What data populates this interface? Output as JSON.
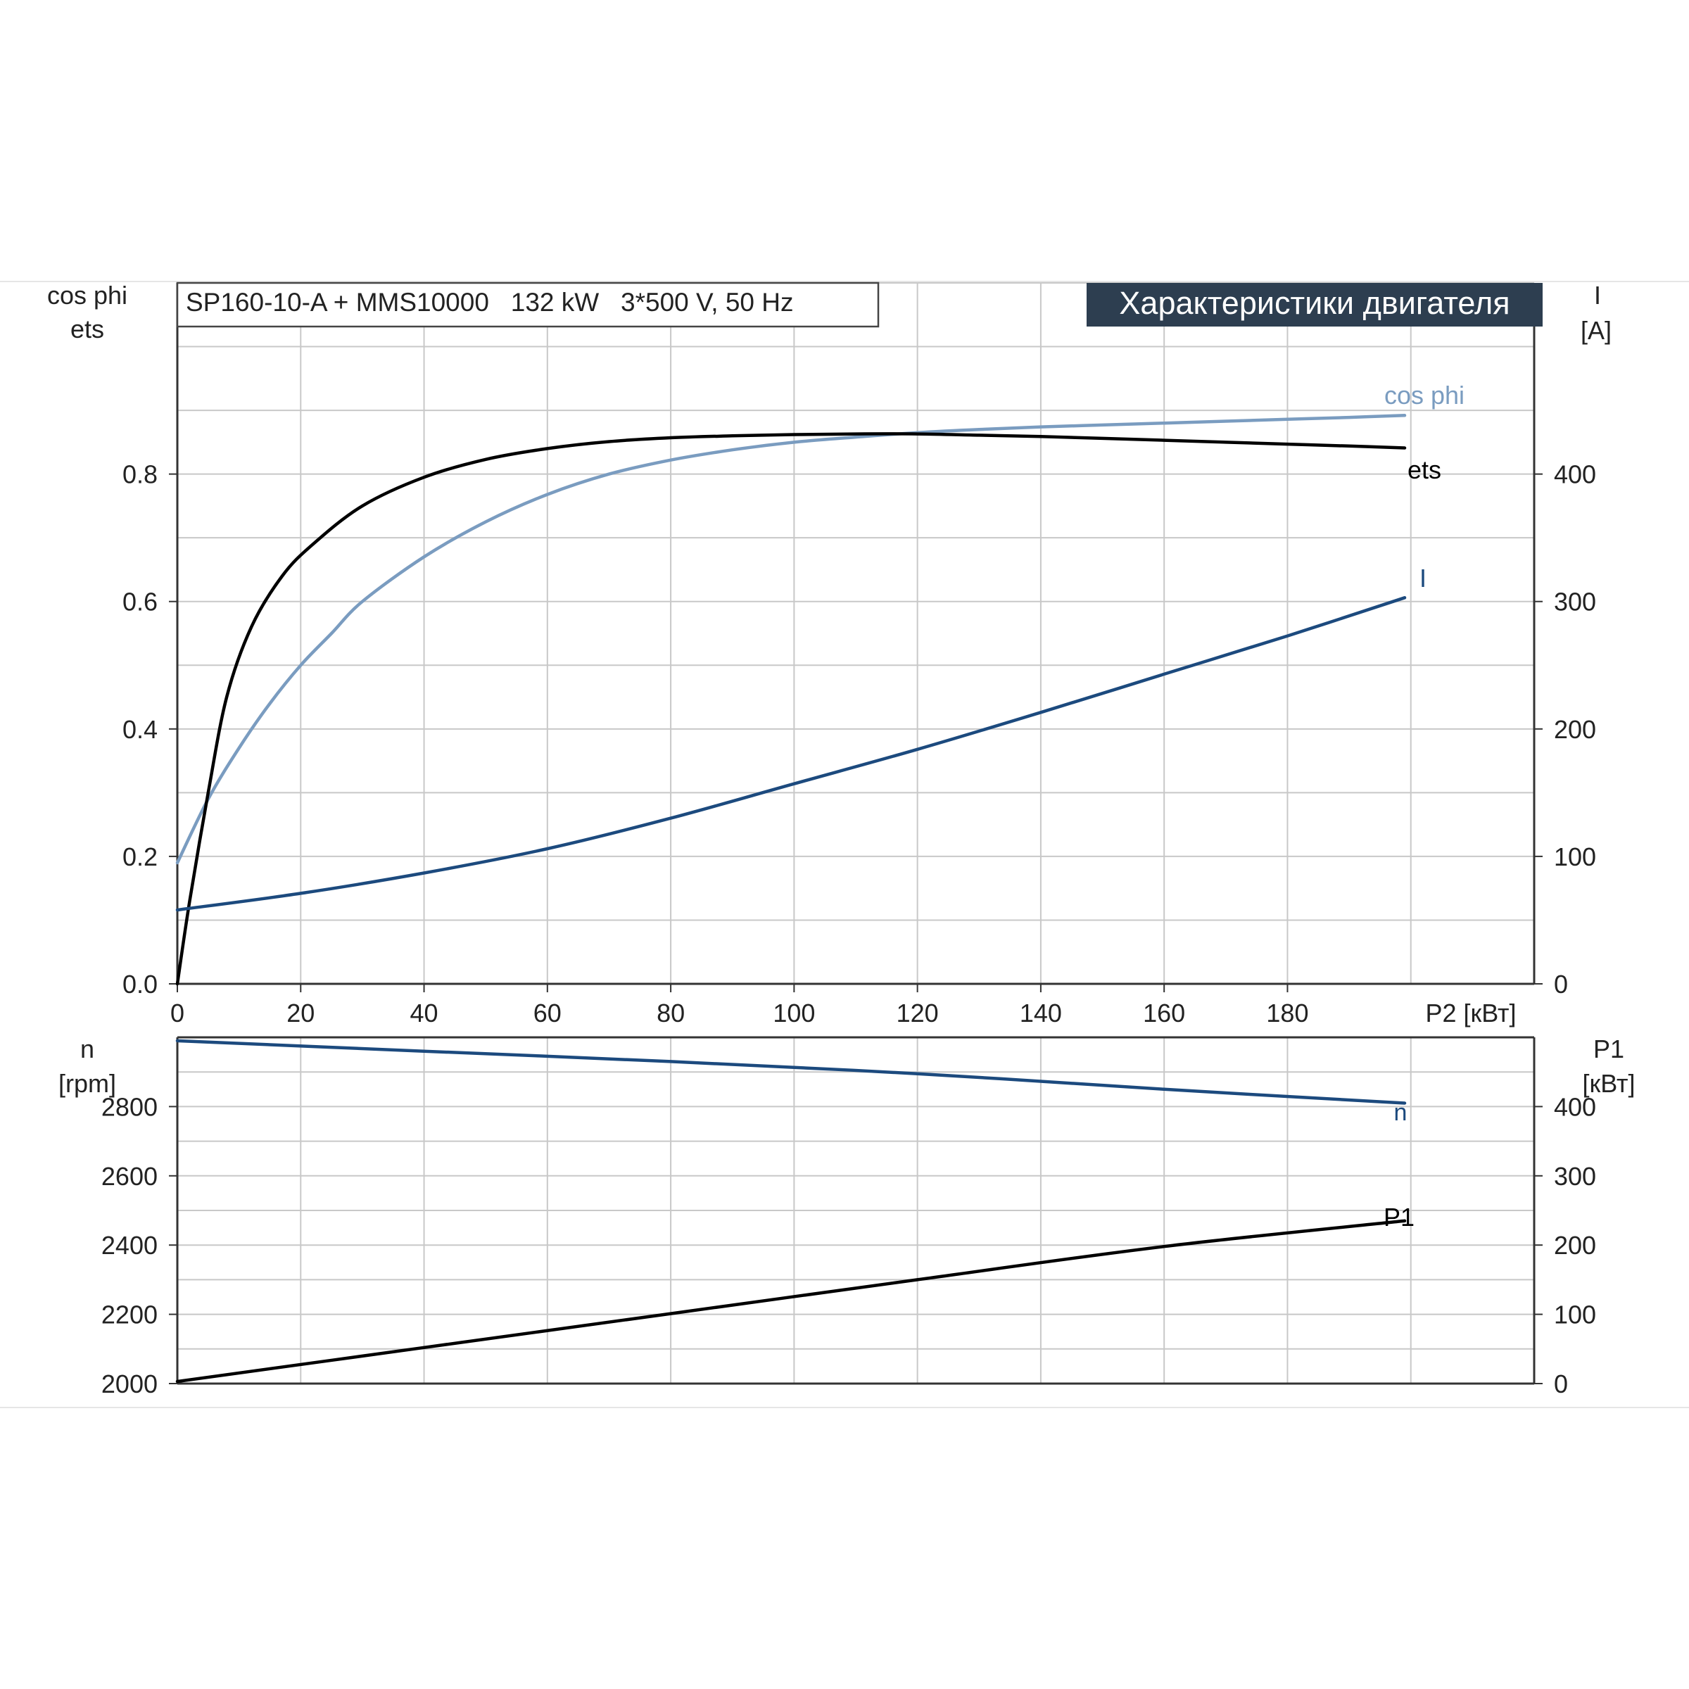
{
  "header": {
    "model_label": "SP160-10-A + MMS10000   132 kW   3*500 V, 50 Hz",
    "title_badge": "Характеристики двигателя"
  },
  "colors": {
    "eta": "#000000",
    "cos_phi": "#7a9cc0",
    "current": "#1c4a7e",
    "speed": "#1c4a7e",
    "p1": "#000000",
    "grid": "#c8c8c8",
    "badge_bg": "#2d3e50",
    "badge_text": "#ffffff"
  },
  "chart_data": [
    {
      "type": "line",
      "xlabel": "P2 [кВт]",
      "x_ticks": [
        "0",
        "20",
        "40",
        "60",
        "80",
        "100",
        "120",
        "140",
        "160",
        "180"
      ],
      "xlim": [
        0,
        220
      ],
      "ylabel_left_1": "cos phi",
      "ylabel_left_2": "ets",
      "y_left_ticks": [
        "0.0",
        "0.2",
        "0.4",
        "0.6",
        "0.8"
      ],
      "ylim_left": [
        0,
        1.1
      ],
      "ylabel_right_1": "I",
      "ylabel_right_2": "[A]",
      "y_right_ticks": [
        "0",
        "100",
        "200",
        "300",
        "400"
      ],
      "ylim_right": [
        0,
        550
      ],
      "grid": true,
      "series": [
        {
          "name": "ets",
          "axis": "left",
          "x": [
            0,
            2,
            5,
            8,
            12,
            17,
            22,
            30,
            40,
            50,
            60,
            70,
            80,
            90,
            100,
            110,
            120,
            130,
            140,
            150,
            160,
            170,
            180,
            190,
            199
          ],
          "y": [
            0.0,
            0.13,
            0.3,
            0.45,
            0.56,
            0.64,
            0.69,
            0.75,
            0.795,
            0.823,
            0.84,
            0.851,
            0.857,
            0.86,
            0.862,
            0.863,
            0.863,
            0.861,
            0.859,
            0.856,
            0.853,
            0.85,
            0.847,
            0.844,
            0.841
          ]
        },
        {
          "name": "cos phi",
          "axis": "left",
          "x": [
            0,
            5,
            10,
            15,
            20,
            25,
            30,
            40,
            50,
            60,
            70,
            80,
            90,
            100,
            110,
            120,
            130,
            140,
            150,
            160,
            170,
            180,
            190,
            199
          ],
          "y": [
            0.19,
            0.29,
            0.37,
            0.44,
            0.5,
            0.55,
            0.6,
            0.67,
            0.725,
            0.768,
            0.8,
            0.822,
            0.838,
            0.85,
            0.858,
            0.865,
            0.87,
            0.874,
            0.877,
            0.88,
            0.883,
            0.886,
            0.889,
            0.892
          ]
        },
        {
          "name": "I",
          "axis": "right",
          "x": [
            0,
            20,
            40,
            60,
            80,
            100,
            120,
            140,
            160,
            180,
            199
          ],
          "y": [
            58,
            71,
            87,
            106,
            130,
            157,
            184,
            213,
            243,
            273,
            303
          ]
        }
      ]
    },
    {
      "type": "line",
      "xlabel": "",
      "xlim": [
        0,
        220
      ],
      "ylabel_left_1": "n",
      "ylabel_left_2": "[rpm]",
      "y_left_ticks": [
        "2000",
        "2200",
        "2400",
        "2600",
        "2800"
      ],
      "ylim_left": [
        2000,
        3000
      ],
      "ylabel_right_1": "P1",
      "ylabel_right_2": "[кВт]",
      "y_right_ticks": [
        "0",
        "100",
        "200",
        "300",
        "400"
      ],
      "ylim_right": [
        0,
        500
      ],
      "grid": true,
      "series": [
        {
          "name": "n",
          "axis": "left",
          "x": [
            0,
            40,
            80,
            120,
            160,
            199
          ],
          "y": [
            2990,
            2960,
            2930,
            2895,
            2850,
            2810
          ]
        },
        {
          "name": "P1",
          "axis": "right",
          "x": [
            0,
            40,
            80,
            120,
            160,
            199
          ],
          "y": [
            3,
            52,
            101,
            150,
            198,
            235
          ]
        }
      ]
    }
  ]
}
